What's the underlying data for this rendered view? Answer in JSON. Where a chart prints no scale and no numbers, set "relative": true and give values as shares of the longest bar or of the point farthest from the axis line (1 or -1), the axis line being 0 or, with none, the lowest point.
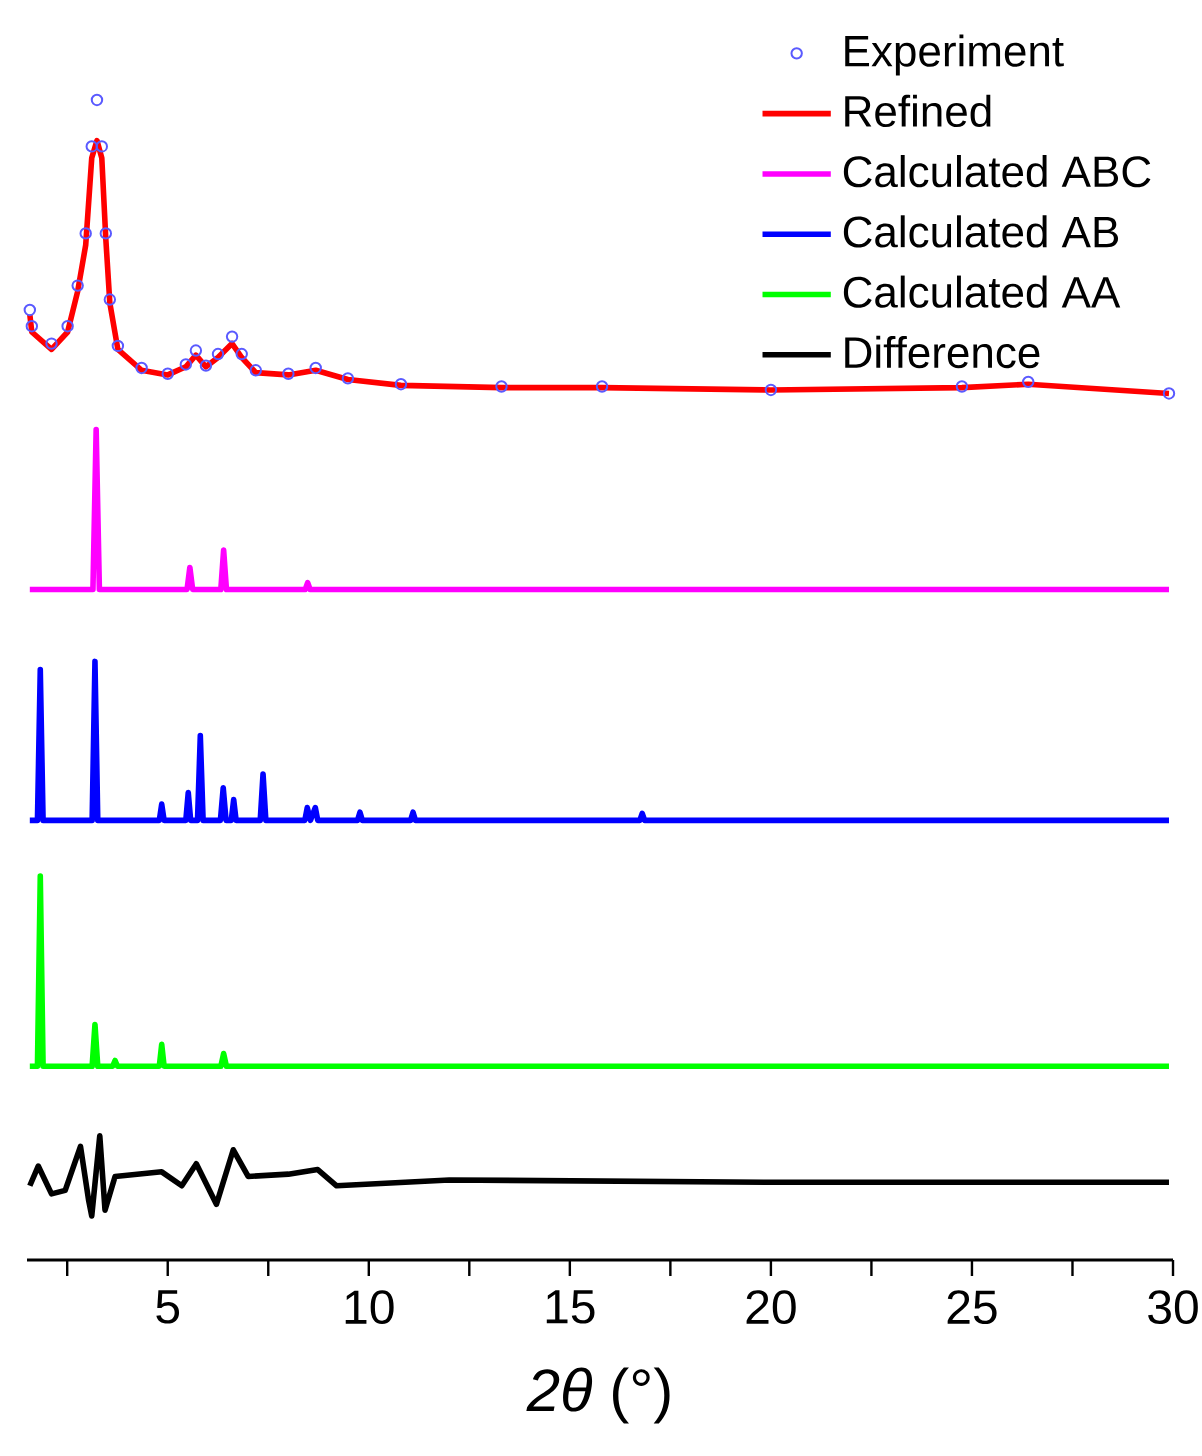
{
  "chart_data": {
    "type": "line",
    "relative": true,
    "xlabel": "*2θ* (°)",
    "xlim": [
      1.5,
      30
    ],
    "xticks": [
      {
        "value": 2.5,
        "label": null
      },
      5,
      {
        "value": 7.5,
        "label": null
      },
      10,
      {
        "value": 12.5,
        "label": null
      },
      15,
      {
        "value": 17.5,
        "label": null
      },
      20,
      {
        "value": 22.5,
        "label": null
      },
      25,
      {
        "value": 27.5,
        "label": null
      },
      30
    ],
    "legend": "top right",
    "line_style": "solid",
    "series": [
      {
        "name": "Experiment",
        "type": "scatter",
        "marker": "circle",
        "color": "#5a5aff",
        "x": [
          1.57,
          1.62,
          2.11,
          2.51,
          2.76,
          2.96,
          3.11,
          3.24,
          3.36,
          3.46,
          3.56,
          3.76,
          4.35,
          5.0,
          5.45,
          5.7,
          5.95,
          6.25,
          6.6,
          6.84,
          7.19,
          8.0,
          8.68,
          9.48,
          10.8,
          13.3,
          15.8,
          20.0,
          24.75,
          26.4,
          29.9
        ],
        "values": [
          0.819,
          0.805,
          0.79,
          0.805,
          0.84,
          0.885,
          0.96,
          1.0,
          0.96,
          0.885,
          0.828,
          0.788,
          0.769,
          0.764,
          0.772,
          0.784,
          0.771,
          0.781,
          0.796,
          0.781,
          0.767,
          0.764,
          0.769,
          0.76,
          0.755,
          0.753,
          0.753,
          0.75,
          0.753,
          0.757,
          0.747
        ]
      },
      {
        "name": "Refined",
        "color": "#ff0000",
        "x": [
          1.57,
          1.62,
          2.11,
          2.51,
          2.76,
          2.96,
          3.11,
          3.24,
          3.36,
          3.46,
          3.56,
          3.76,
          4.35,
          5.0,
          5.45,
          5.7,
          5.95,
          6.25,
          6.6,
          6.84,
          7.19,
          8.0,
          8.68,
          9.48,
          10.8,
          13.3,
          15.8,
          20.0,
          24.75,
          26.4,
          29.9
        ],
        "values": [
          0.815,
          0.8,
          0.785,
          0.8,
          0.835,
          0.875,
          0.95,
          0.965,
          0.95,
          0.88,
          0.825,
          0.785,
          0.767,
          0.763,
          0.77,
          0.78,
          0.77,
          0.778,
          0.79,
          0.778,
          0.765,
          0.763,
          0.767,
          0.759,
          0.754,
          0.752,
          0.752,
          0.75,
          0.752,
          0.755,
          0.747
        ]
      },
      {
        "name": "Calculated ABC",
        "color": "#ff00ff",
        "x": [
          1.57,
          3.14,
          3.22,
          3.3,
          5.48,
          5.55,
          5.62,
          6.32,
          6.39,
          6.46,
          8.42,
          8.48,
          8.54,
          29.9
        ],
        "values": [
          0.578,
          0.578,
          0.716,
          0.578,
          0.578,
          0.597,
          0.578,
          0.578,
          0.612,
          0.578,
          0.578,
          0.584,
          0.578,
          0.578
        ]
      },
      {
        "name": "Calculated AB",
        "color": "#0000ff",
        "x": [
          1.57,
          1.76,
          1.83,
          1.9,
          3.12,
          3.19,
          3.26,
          4.79,
          4.85,
          4.91,
          5.45,
          5.51,
          5.57,
          5.74,
          5.81,
          5.88,
          6.31,
          6.38,
          6.45,
          6.58,
          6.64,
          6.7,
          7.3,
          7.37,
          7.44,
          8.41,
          8.47,
          8.55,
          8.67,
          8.73,
          9.72,
          9.78,
          9.84,
          11.04,
          11.1,
          11.16,
          16.74,
          16.8,
          16.86,
          29.9
        ],
        "values": [
          0.379,
          0.379,
          0.509,
          0.379,
          0.379,
          0.516,
          0.379,
          0.379,
          0.393,
          0.379,
          0.379,
          0.403,
          0.379,
          0.379,
          0.452,
          0.379,
          0.379,
          0.407,
          0.379,
          0.379,
          0.397,
          0.379,
          0.379,
          0.419,
          0.379,
          0.379,
          0.39,
          0.379,
          0.39,
          0.379,
          0.379,
          0.386,
          0.379,
          0.379,
          0.386,
          0.379,
          0.379,
          0.385,
          0.379,
          0.379
        ]
      },
      {
        "name": "Calculated AA",
        "color": "#00ff00",
        "x": [
          1.57,
          1.76,
          1.83,
          1.9,
          3.12,
          3.19,
          3.26,
          3.63,
          3.69,
          3.75,
          4.79,
          4.85,
          4.91,
          6.32,
          6.39,
          6.46,
          29.9
        ],
        "values": [
          0.167,
          0.167,
          0.331,
          0.167,
          0.167,
          0.203,
          0.167,
          0.167,
          0.172,
          0.167,
          0.167,
          0.186,
          0.167,
          0.167,
          0.178,
          0.167,
          0.167
        ]
      },
      {
        "name": "Difference",
        "color": "#000000",
        "x": [
          1.57,
          1.78,
          2.11,
          2.45,
          2.83,
          3.03,
          3.11,
          3.31,
          3.44,
          3.69,
          4.85,
          5.35,
          5.71,
          6.21,
          6.63,
          7.0,
          8.0,
          8.73,
          9.2,
          12.0,
          20.0,
          29.9
        ],
        "values": [
          0.064,
          0.081,
          0.057,
          0.06,
          0.098,
          0.052,
          0.038,
          0.107,
          0.043,
          0.072,
          0.076,
          0.064,
          0.083,
          0.048,
          0.095,
          0.072,
          0.074,
          0.078,
          0.064,
          0.069,
          0.067,
          0.067
        ]
      }
    ]
  }
}
